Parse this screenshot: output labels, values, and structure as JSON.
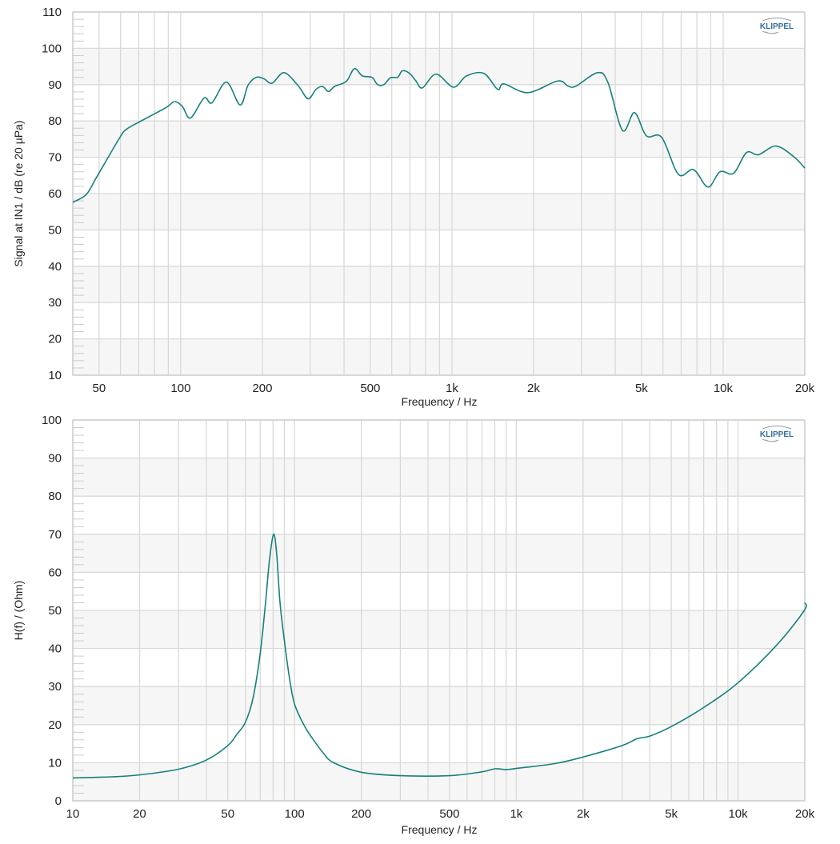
{
  "colors": {
    "curve": "#17807a",
    "grid": "#d9d9d9",
    "band": "#f6f6f6",
    "logo": "#2f6e9e"
  },
  "logo_text": "KLIPPEL",
  "chart_data": [
    {
      "type": "line",
      "xlabel": "Frequency / Hz",
      "ylabel": "Signal at IN1 / dB (re 20 µPa)",
      "xscale": "log",
      "xlim": [
        40,
        20000
      ],
      "ylim": [
        10,
        110
      ],
      "yticks": [
        10,
        20,
        30,
        40,
        50,
        60,
        70,
        80,
        90,
        100,
        110
      ],
      "xticks": [
        {
          "v": 50,
          "label": "50"
        },
        {
          "v": 100,
          "label": "100"
        },
        {
          "v": 200,
          "label": "200"
        },
        {
          "v": 500,
          "label": "500"
        },
        {
          "v": 1000,
          "label": "1k"
        },
        {
          "v": 2000,
          "label": "2k"
        },
        {
          "v": 5000,
          "label": "5k"
        },
        {
          "v": 10000,
          "label": "10k"
        },
        {
          "v": 20000,
          "label": "20k"
        }
      ],
      "grid": true,
      "series": [
        {
          "x": [
            40,
            44.9,
            49.2,
            59.7,
            63.1,
            69.8,
            87.9,
            94.8,
            101.4,
            108.6,
            121.9,
            130.4,
            147.4,
            165.5,
            177,
            189.7,
            202.8,
            217.3,
            240.5,
            271.7,
            294.6,
            315.5,
            333,
            350.8,
            369,
            408,
            436.6,
            467.6,
            507,
            532,
            561,
            593,
            631,
            656,
            698,
            737,
            778,
            874,
            1014,
            1131,
            1312,
            1474,
            1556,
            1906,
            2453,
            2680,
            2867,
            3444,
            3760,
            4255,
            4710,
            5212,
            5932,
            6840,
            7780,
            8790,
            9730,
            10930,
            12190,
            13500,
            15670,
            18320,
            20000
          ],
          "y": [
            57.6,
            59.8,
            64.8,
            75.5,
            77.7,
            79.6,
            83.6,
            85.3,
            84,
            80.8,
            86.3,
            85,
            90.7,
            84.4,
            89.8,
            92,
            91.6,
            90.4,
            93.3,
            89.6,
            86.1,
            88.7,
            89.5,
            88.1,
            89.5,
            90.9,
            94.4,
            92.4,
            92,
            90,
            90,
            91.9,
            92,
            93.8,
            93.1,
            91,
            89.1,
            92.9,
            89.3,
            92.4,
            93.1,
            88.7,
            90.2,
            87.8,
            91,
            89.6,
            89.6,
            93.3,
            90.6,
            77.4,
            82.3,
            75.9,
            75.5,
            65.3,
            66.6,
            61.8,
            66,
            65.6,
            71.3,
            70.7,
            73.1,
            70,
            67
          ]
        }
      ]
    },
    {
      "type": "line",
      "xlabel": "Frequency / Hz",
      "ylabel": "H(f) / (Ohm)",
      "xscale": "log",
      "xlim": [
        10,
        20000
      ],
      "ylim": [
        0,
        100
      ],
      "yticks": [
        0,
        10,
        20,
        30,
        40,
        50,
        60,
        70,
        80,
        90,
        100
      ],
      "xticks": [
        {
          "v": 10,
          "label": "10"
        },
        {
          "v": 20,
          "label": "20"
        },
        {
          "v": 50,
          "label": "50"
        },
        {
          "v": 100,
          "label": "100"
        },
        {
          "v": 200,
          "label": "200"
        },
        {
          "v": 500,
          "label": "500"
        },
        {
          "v": 1000,
          "label": "1k"
        },
        {
          "v": 2000,
          "label": "2k"
        },
        {
          "v": 5000,
          "label": "5k"
        },
        {
          "v": 10000,
          "label": "10k"
        },
        {
          "v": 20000,
          "label": "20k"
        }
      ],
      "grid": true,
      "series": [
        {
          "x": [
            10,
            15,
            20,
            30,
            40,
            50,
            55,
            60,
            65,
            70,
            74,
            77,
            80.4,
            83,
            86,
            90,
            95,
            100,
            110,
            120,
            135,
            150,
            200,
            300,
            500,
            700,
            800,
            900,
            1000,
            1500,
            2000,
            3000,
            3500,
            4000,
            5000,
            7000,
            10000,
            15000,
            19900,
            20000
          ],
          "y": [
            6,
            6.3,
            6.8,
            8.3,
            10.7,
            14.5,
            17.5,
            20.6,
            27,
            38.7,
            52,
            63,
            70,
            65,
            52,
            42,
            32,
            25.4,
            20,
            16.5,
            12.5,
            10,
            7.5,
            6.6,
            6.6,
            7.6,
            8.4,
            8.2,
            8.5,
            9.8,
            11.5,
            14.5,
            16.3,
            17,
            19.5,
            24.5,
            31,
            41,
            50,
            52
          ]
        }
      ]
    }
  ]
}
